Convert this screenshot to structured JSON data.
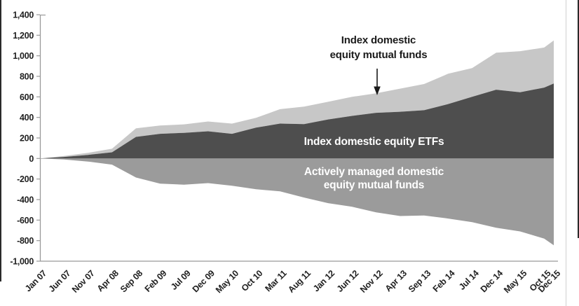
{
  "page": {
    "background": "#ffffff"
  },
  "chart_data": {
    "type": "area",
    "stacked": true,
    "grid": "off",
    "legend_position": "labels-inside-areas",
    "ylim": [
      -1000,
      1400
    ],
    "x_range_months": 107,
    "x_tick_labels": [
      "Jan 07",
      "Jun 07",
      "Nov 07",
      "Apr 08",
      "Sep 08",
      "Feb 09",
      "Jul 09",
      "Dec 09",
      "May 10",
      "Oct 10",
      "Mar 11",
      "Aug 11",
      "Jan 12",
      "Jun 12",
      "Nov 12",
      "Apr 13",
      "Sep 13",
      "Feb 14",
      "Jul 14",
      "Dec 14",
      "May 15",
      "Oct 15",
      "Dec 15"
    ],
    "x_tick_month_index": [
      0,
      5,
      10,
      15,
      20,
      25,
      30,
      35,
      40,
      45,
      50,
      55,
      60,
      65,
      70,
      75,
      80,
      85,
      90,
      95,
      100,
      105,
      107
    ],
    "y_ticks": [
      {
        "value": 1400,
        "label": "1,400"
      },
      {
        "value": 1200,
        "label": "1,200"
      },
      {
        "value": 1000,
        "label": "1,000"
      },
      {
        "value": 800,
        "label": "800"
      },
      {
        "value": 600,
        "label": "600"
      },
      {
        "value": 400,
        "label": "400"
      },
      {
        "value": 200,
        "label": "200"
      },
      {
        "value": 0,
        "label": "0"
      },
      {
        "value": -200,
        "label": "-200"
      },
      {
        "value": -400,
        "label": "-400"
      },
      {
        "value": -600,
        "label": "-600"
      },
      {
        "value": -800,
        "label": "-800"
      },
      {
        "value": -1000,
        "label": "-1,000"
      }
    ],
    "series": [
      {
        "name": "Index domestic equity ETFs",
        "color": "#4e4e4e",
        "stack": "positive",
        "values": [
          0,
          15,
          35,
          60,
          210,
          240,
          250,
          265,
          240,
          300,
          340,
          335,
          380,
          415,
          445,
          455,
          470,
          530,
          600,
          670,
          645,
          690,
          730
        ]
      },
      {
        "name": "Index domestic equity mutual funds",
        "color": "#c7c7c7",
        "stack": "positive",
        "values": [
          0,
          10,
          20,
          35,
          84,
          81,
          82,
          95,
          100,
          96,
          140,
          170,
          172,
          185,
          190,
          225,
          255,
          295,
          280,
          360,
          400,
          390,
          420
        ]
      },
      {
        "name": "Actively managed domestic equity mutual funds",
        "color": "#9b9b9b",
        "stack": "negative",
        "values": [
          0,
          -10,
          -30,
          -60,
          -185,
          -245,
          -255,
          -240,
          -265,
          -300,
          -320,
          -380,
          -435,
          -470,
          -525,
          -560,
          -555,
          -585,
          -620,
          -675,
          -710,
          -780,
          -845
        ]
      }
    ],
    "labels": {
      "annotation_line1": "Index domestic",
      "annotation_line2": "equity mutual funds",
      "etf_area_label": "Index domestic equity ETFs",
      "active_area_label_line1": "Actively managed domestic",
      "active_area_label_line2": "equity mutual funds"
    },
    "annotation_arrow": {
      "points_to_month": "Nov 12"
    },
    "axis_color": "#9a9a9a",
    "tick_text_color": "#1f1f1f"
  }
}
